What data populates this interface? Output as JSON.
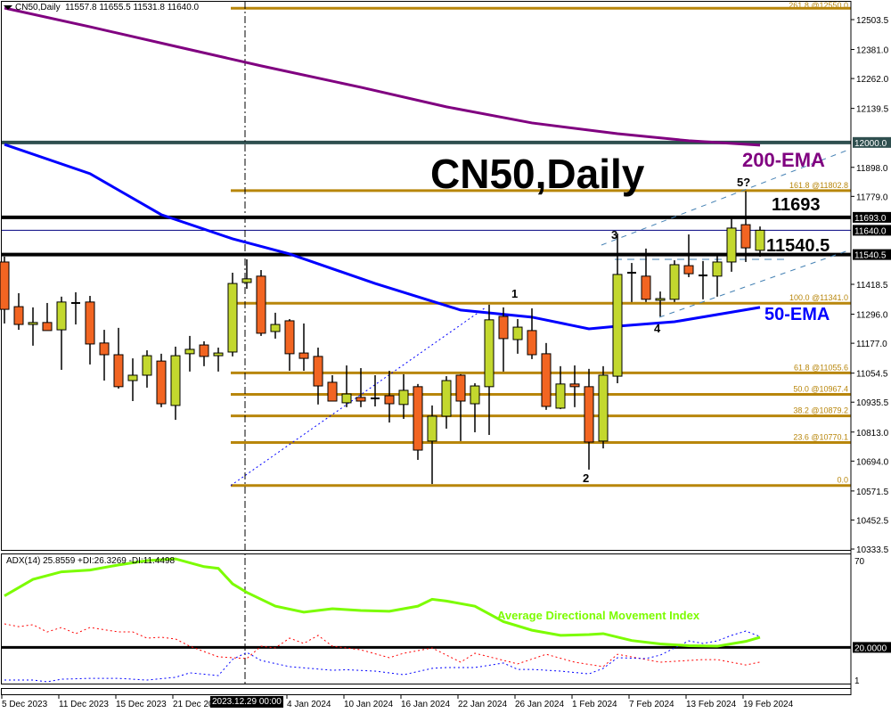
{
  "header": {
    "symbol": "CN50,Daily",
    "ohlc": "11557.8 11655.5 11531.8 11640.0"
  },
  "adx_header": "ADX(14) 25.8559 +DI:26.3269 -DI:11.4498",
  "annotations": {
    "title": "CN50,Daily",
    "ema200_label": "200-EMA",
    "ema50_label": "50-EMA",
    "level_high": "11693",
    "level_low": "11540.5",
    "adx_label": "Average Directional Movement Index",
    "waves": [
      "1",
      "2",
      "3",
      "4",
      "5?"
    ]
  },
  "crosshair_label": "2023.12.29 00:00",
  "colors": {
    "bull": "#c3d82e",
    "bear": "#f26522",
    "fib": "#b8860b",
    "ema200": "#800080",
    "ema50": "#0000ff",
    "adx": "#7cfc00",
    "plus_di": "#0000ff",
    "minus_di": "#ff0000",
    "level_12000": "#2f4f4f",
    "channel": "#4682b4"
  },
  "chart_data": {
    "type": "candlestick",
    "title": "CN50,Daily",
    "ylim": [
      10333.5,
      12503.5
    ],
    "price_ticks": [
      "12503.5",
      "12381.0",
      "12262.0",
      "12139.5",
      "11898.0",
      "11779.0",
      "11418.5",
      "11296.0",
      "11177.0",
      "11054.5",
      "10935.5",
      "10813.0",
      "10694.0",
      "10571.5",
      "10452.5",
      "10333.5"
    ],
    "highlight_ticks": [
      {
        "label": "12000.0",
        "value": 12000.0,
        "color": "#2f4f4f"
      },
      {
        "label": "11693.0",
        "value": 11693.0,
        "color": "#000000"
      },
      {
        "label": "11640.0",
        "value": 11640.0,
        "color": "#000000"
      },
      {
        "label": "11540.5",
        "value": 11540.5,
        "color": "#000000"
      }
    ],
    "date_ticks": [
      {
        "label": "5 Dec 2023",
        "date": "2023-12-05"
      },
      {
        "label": "11 Dec 2023",
        "date": "2023-12-11"
      },
      {
        "label": "15 Dec 2023",
        "date": "2023-12-15"
      },
      {
        "label": "21 Dec 2023",
        "date": "2023-12-21"
      },
      {
        "label": "4 Jan 2024",
        "date": "2024-01-04"
      },
      {
        "label": "10 Jan 2024",
        "date": "2024-01-10"
      },
      {
        "label": "16 Jan 2024",
        "date": "2024-01-16"
      },
      {
        "label": "22 Jan 2024",
        "date": "2024-01-22"
      },
      {
        "label": "26 Jan 2024",
        "date": "2024-01-26"
      },
      {
        "label": "1 Feb 2024",
        "date": "2024-02-01"
      },
      {
        "label": "7 Feb 2024",
        "date": "2024-02-07"
      },
      {
        "label": "13 Feb 2024",
        "date": "2024-02-13"
      },
      {
        "label": "19 Feb 2024",
        "date": "2024-02-19"
      }
    ],
    "candles": [
      {
        "d": "2023-12-05",
        "o": 11510,
        "h": 11532,
        "l": 11258,
        "c": 11316
      },
      {
        "d": "2023-12-06",
        "o": 11327,
        "h": 11382,
        "l": 11232,
        "c": 11254
      },
      {
        "d": "2023-12-07",
        "o": 11254,
        "h": 11324,
        "l": 11167,
        "c": 11262
      },
      {
        "d": "2023-12-08",
        "o": 11262,
        "h": 11342,
        "l": 11229,
        "c": 11229
      },
      {
        "d": "2023-12-11",
        "o": 11232,
        "h": 11368,
        "l": 11068,
        "c": 11346
      },
      {
        "d": "2023-12-12",
        "o": 11342,
        "h": 11386,
        "l": 11254,
        "c": 11342
      },
      {
        "d": "2023-12-13",
        "o": 11346,
        "h": 11371,
        "l": 11090,
        "c": 11174
      },
      {
        "d": "2023-12-14",
        "o": 11178,
        "h": 11232,
        "l": 11024,
        "c": 11130
      },
      {
        "d": "2023-12-15",
        "o": 11130,
        "h": 11240,
        "l": 10991,
        "c": 10999
      },
      {
        "d": "2023-12-18",
        "o": 11024,
        "h": 11115,
        "l": 10940,
        "c": 11046
      },
      {
        "d": "2023-12-19",
        "o": 11046,
        "h": 11148,
        "l": 10995,
        "c": 11126
      },
      {
        "d": "2023-12-20",
        "o": 11104,
        "h": 11134,
        "l": 10915,
        "c": 10929
      },
      {
        "d": "2023-12-21",
        "o": 10922,
        "h": 11163,
        "l": 10863,
        "c": 11126
      },
      {
        "d": "2023-12-22",
        "o": 11134,
        "h": 11207,
        "l": 11061,
        "c": 11152
      },
      {
        "d": "2023-12-26",
        "o": 11170,
        "h": 11185,
        "l": 11083,
        "c": 11123
      },
      {
        "d": "2023-12-27",
        "o": 11126,
        "h": 11159,
        "l": 11061,
        "c": 11137
      },
      {
        "d": "2023-12-28",
        "o": 11141,
        "h": 11466,
        "l": 11123,
        "c": 11422
      },
      {
        "d": "2023-12-29",
        "o": 11426,
        "h": 11521,
        "l": 11400,
        "c": 11441
      },
      {
        "d": "2024-01-02",
        "o": 11452,
        "h": 11477,
        "l": 11207,
        "c": 11218
      },
      {
        "d": "2024-01-03",
        "o": 11225,
        "h": 11302,
        "l": 11196,
        "c": 11254
      },
      {
        "d": "2024-01-04",
        "o": 11269,
        "h": 11276,
        "l": 11064,
        "c": 11134
      },
      {
        "d": "2024-01-05",
        "o": 11137,
        "h": 11258,
        "l": 11064,
        "c": 11115
      },
      {
        "d": "2024-01-08",
        "o": 11123,
        "h": 11159,
        "l": 10926,
        "c": 11002
      },
      {
        "d": "2024-01-09",
        "o": 11017,
        "h": 11046,
        "l": 10940,
        "c": 10940
      },
      {
        "d": "2024-01-10",
        "o": 10933,
        "h": 11086,
        "l": 10915,
        "c": 10969
      },
      {
        "d": "2024-01-11",
        "o": 10955,
        "h": 11075,
        "l": 10915,
        "c": 10940
      },
      {
        "d": "2024-01-12",
        "o": 10951,
        "h": 11046,
        "l": 10918,
        "c": 10951
      },
      {
        "d": "2024-01-15",
        "o": 10962,
        "h": 11064,
        "l": 10852,
        "c": 10929
      },
      {
        "d": "2024-01-16",
        "o": 10926,
        "h": 11050,
        "l": 10867,
        "c": 10984
      },
      {
        "d": "2024-01-17",
        "o": 10999,
        "h": 11010,
        "l": 10699,
        "c": 10739
      },
      {
        "d": "2024-01-18",
        "o": 10776,
        "h": 10922,
        "l": 10600,
        "c": 10878
      },
      {
        "d": "2024-01-19",
        "o": 10878,
        "h": 11042,
        "l": 10827,
        "c": 11024
      },
      {
        "d": "2024-01-22",
        "o": 11046,
        "h": 11050,
        "l": 10776,
        "c": 10940
      },
      {
        "d": "2024-01-23",
        "o": 10929,
        "h": 11013,
        "l": 10812,
        "c": 11002
      },
      {
        "d": "2024-01-24",
        "o": 10999,
        "h": 11335,
        "l": 10801,
        "c": 11273
      },
      {
        "d": "2024-01-25",
        "o": 11287,
        "h": 11324,
        "l": 11061,
        "c": 11196
      },
      {
        "d": "2024-01-26",
        "o": 11192,
        "h": 11276,
        "l": 11134,
        "c": 11243
      },
      {
        "d": "2024-01-29",
        "o": 11229,
        "h": 11320,
        "l": 11112,
        "c": 11130
      },
      {
        "d": "2024-01-30",
        "o": 11134,
        "h": 11178,
        "l": 10904,
        "c": 10918
      },
      {
        "d": "2024-01-31",
        "o": 10911,
        "h": 11083,
        "l": 10907,
        "c": 11010
      },
      {
        "d": "2024-02-01",
        "o": 11010,
        "h": 11086,
        "l": 10915,
        "c": 10999
      },
      {
        "d": "2024-02-02",
        "o": 10999,
        "h": 11072,
        "l": 10659,
        "c": 10772
      },
      {
        "d": "2024-02-05",
        "o": 10776,
        "h": 11083,
        "l": 10746,
        "c": 11046
      },
      {
        "d": "2024-02-06",
        "o": 11042,
        "h": 11627,
        "l": 11013,
        "c": 11459
      },
      {
        "d": "2024-02-07",
        "o": 11462,
        "h": 11506,
        "l": 11346,
        "c": 11466
      },
      {
        "d": "2024-02-08",
        "o": 11452,
        "h": 11565,
        "l": 11346,
        "c": 11357
      },
      {
        "d": "2024-02-09",
        "o": 11353,
        "h": 11389,
        "l": 11287,
        "c": 11360
      },
      {
        "d": "2024-02-12",
        "o": 11357,
        "h": 11517,
        "l": 11346,
        "c": 11499
      },
      {
        "d": "2024-02-13",
        "o": 11495,
        "h": 11623,
        "l": 11448,
        "c": 11462
      },
      {
        "d": "2024-02-14",
        "o": 11455,
        "h": 11514,
        "l": 11357,
        "c": 11455
      },
      {
        "d": "2024-02-15",
        "o": 11452,
        "h": 11536,
        "l": 11368,
        "c": 11510
      },
      {
        "d": "2024-02-16",
        "o": 11510,
        "h": 11689,
        "l": 11470,
        "c": 11649
      },
      {
        "d": "2024-02-19",
        "o": 11663,
        "h": 11800,
        "l": 11510,
        "c": 11568
      },
      {
        "d": "2024-02-20",
        "o": 11557.8,
        "h": 11655.5,
        "l": 11531.8,
        "c": 11640.0
      }
    ],
    "ema200": [
      [
        "2023-12-05",
        12551
      ],
      [
        "2023-12-13",
        12474
      ],
      [
        "2023-12-21",
        12394
      ],
      [
        "2024-01-02",
        12314
      ],
      [
        "2024-01-11",
        12226
      ],
      [
        "2024-01-19",
        12146
      ],
      [
        "2024-01-29",
        12080
      ],
      [
        "2024-02-06",
        12036
      ],
      [
        "2024-02-13",
        12007
      ],
      [
        "2024-02-20",
        11989
      ]
    ],
    "ema50": [
      [
        "2023-12-05",
        11992
      ],
      [
        "2023-12-13",
        11872
      ],
      [
        "2023-12-20",
        11704
      ],
      [
        "2023-12-28",
        11605
      ],
      [
        "2024-01-04",
        11543
      ],
      [
        "2024-01-12",
        11422
      ],
      [
        "2024-01-22",
        11313
      ],
      [
        "2024-01-29",
        11284
      ],
      [
        "2024-02-02",
        11236
      ],
      [
        "2024-02-06",
        11247
      ],
      [
        "2024-02-12",
        11265
      ],
      [
        "2024-02-20",
        11324
      ]
    ],
    "fib_levels": [
      {
        "label": "261.8 @12550.0",
        "value": 12550.0
      },
      {
        "label": "161.8 @11802.8",
        "value": 11802.8
      },
      {
        "label": "100.0 @11341.0",
        "value": 11341.0
      },
      {
        "label": "61.8 @11055.6",
        "value": 11055.6
      },
      {
        "label": "50.0 @10967.4",
        "value": 10967.4
      },
      {
        "label": "38.2 @10879.2",
        "value": 10879.2
      },
      {
        "label": "23.6 @10770.1",
        "value": 10770.1
      },
      {
        "label": "0.0",
        "value": 10593.9
      }
    ],
    "horizontal_levels": [
      12000.0,
      11693.0,
      11640.0,
      11540.5
    ],
    "adx": {
      "ylim": [
        1,
        70
      ],
      "ticks": [
        "70",
        "1"
      ],
      "level": {
        "label": "20.0000",
        "value": 20
      },
      "adx": [
        [
          "2023-12-05",
          50
        ],
        [
          "2023-12-07",
          59.6
        ],
        [
          "2023-12-11",
          64
        ],
        [
          "2023-12-13",
          65
        ],
        [
          "2023-12-15",
          68
        ],
        [
          "2023-12-19",
          70.5
        ],
        [
          "2023-12-21",
          71.5
        ],
        [
          "2023-12-26",
          67
        ],
        [
          "2023-12-27",
          66
        ],
        [
          "2023-12-28",
          57
        ],
        [
          "2023-12-29",
          52
        ],
        [
          "2024-01-03",
          44
        ],
        [
          "2024-01-05",
          40.5
        ],
        [
          "2024-01-09",
          42.5
        ],
        [
          "2024-01-11",
          41.5
        ],
        [
          "2024-01-15",
          41
        ],
        [
          "2024-01-17",
          44
        ],
        [
          "2024-01-18",
          48
        ],
        [
          "2024-01-19",
          47
        ],
        [
          "2024-01-23",
          44
        ],
        [
          "2024-01-25",
          35
        ],
        [
          "2024-01-29",
          30
        ],
        [
          "2024-01-31",
          27
        ],
        [
          "2024-02-02",
          27.5
        ],
        [
          "2024-02-05",
          28
        ],
        [
          "2024-02-07",
          24
        ],
        [
          "2024-02-09",
          22
        ],
        [
          "2024-02-13",
          21
        ],
        [
          "2024-02-15",
          20.7
        ],
        [
          "2024-02-19",
          23.5
        ],
        [
          "2024-02-20",
          25.8559
        ]
      ],
      "plus_di": [
        [
          "2023-12-05",
          1
        ],
        [
          "2023-12-07",
          1
        ],
        [
          "2023-12-08",
          0
        ],
        [
          "2023-12-11",
          1.5
        ],
        [
          "2023-12-13",
          2
        ],
        [
          "2023-12-15",
          2
        ],
        [
          "2023-12-19",
          1
        ],
        [
          "2023-12-21",
          2.6
        ],
        [
          "2023-12-22",
          5.2
        ],
        [
          "2023-12-27",
          3.6
        ],
        [
          "2023-12-28",
          13
        ],
        [
          "2023-12-29",
          17.1
        ],
        [
          "2024-01-02",
          12.4
        ],
        [
          "2024-01-04",
          8.8
        ],
        [
          "2024-01-09",
          6.7
        ],
        [
          "2024-01-10",
          7
        ],
        [
          "2024-01-12",
          6.2
        ],
        [
          "2024-01-16",
          4.1
        ],
        [
          "2024-01-18",
          7.8
        ],
        [
          "2024-01-19",
          8.3
        ],
        [
          "2024-01-23",
          8.3
        ],
        [
          "2024-01-25",
          10.9
        ],
        [
          "2024-01-26",
          7.2
        ],
        [
          "2024-01-29",
          7.2
        ],
        [
          "2024-01-31",
          6.2
        ],
        [
          "2024-02-02",
          4.6
        ],
        [
          "2024-02-05",
          7.8
        ],
        [
          "2024-02-06",
          14
        ],
        [
          "2024-02-08",
          13.5
        ],
        [
          "2024-02-09",
          15.5
        ],
        [
          "2024-02-13",
          23.8
        ],
        [
          "2024-02-14",
          22.3
        ],
        [
          "2024-02-15",
          23.8
        ],
        [
          "2024-02-16",
          27
        ],
        [
          "2024-02-19",
          29.5
        ],
        [
          "2024-02-20",
          26.3269
        ]
      ],
      "minus_di": [
        [
          "2023-12-05",
          33.7
        ],
        [
          "2023-12-06",
          32.1
        ],
        [
          "2023-12-07",
          33.2
        ],
        [
          "2023-12-08",
          29
        ],
        [
          "2023-12-11",
          31.6
        ],
        [
          "2023-12-12",
          28
        ],
        [
          "2023-12-13",
          31.6
        ],
        [
          "2023-12-15",
          29
        ],
        [
          "2023-12-18",
          29
        ],
        [
          "2023-12-19",
          25.4
        ],
        [
          "2023-12-20",
          25.9
        ],
        [
          "2023-12-21",
          24.9
        ],
        [
          "2023-12-22",
          20.7
        ],
        [
          "2023-12-27",
          14.5
        ],
        [
          "2023-12-29",
          13.5
        ],
        [
          "2024-01-02",
          20.7
        ],
        [
          "2024-01-03",
          19.7
        ],
        [
          "2024-01-04",
          25.4
        ],
        [
          "2024-01-05",
          22.3
        ],
        [
          "2024-01-08",
          27
        ],
        [
          "2024-01-09",
          20.7
        ],
        [
          "2024-01-11",
          18.6
        ],
        [
          "2024-01-15",
          14
        ],
        [
          "2024-01-16",
          16.6
        ],
        [
          "2024-01-17",
          18.1
        ],
        [
          "2024-01-18",
          19.7
        ],
        [
          "2024-01-22",
          11.4
        ],
        [
          "2024-01-23",
          16.6
        ],
        [
          "2024-01-26",
          10.4
        ],
        [
          "2024-01-30",
          16
        ],
        [
          "2024-02-01",
          11.4
        ],
        [
          "2024-02-05",
          8.8
        ],
        [
          "2024-02-06",
          16
        ],
        [
          "2024-02-09",
          11.4
        ],
        [
          "2024-02-13",
          12.4
        ],
        [
          "2024-02-14",
          12.9
        ],
        [
          "2024-02-15",
          12.9
        ],
        [
          "2024-02-19",
          9.8
        ],
        [
          "2024-02-20",
          11.4498
        ]
      ]
    }
  }
}
